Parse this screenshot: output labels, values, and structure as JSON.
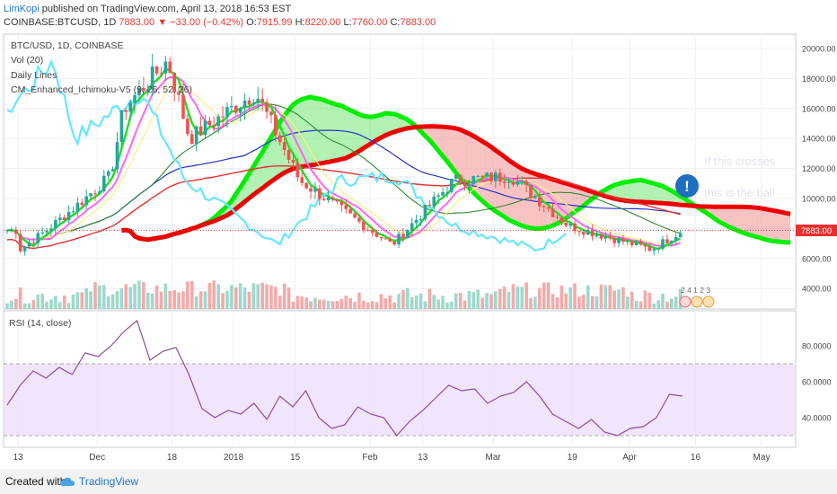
{
  "header": {
    "author": "LimKopi",
    "published_text": " published on TradingView.com, April 13, 2018 16:53 EST",
    "symbol_line": "COINBASE:BTCUSD, 1D",
    "last": "7883.00",
    "change_text": "▼ −33.00 (−0.42%)",
    "o_label": "O:",
    "o_val": "7915.99",
    "h_label": "H:",
    "h_val": "8220.00",
    "l_label": "L:",
    "l_val": "7760.00",
    "c_label": "C:",
    "c_val": "7883.00"
  },
  "legend": {
    "main": "BTC/USD, 1D, COINBASE",
    "vol": "Vol (20)",
    "daily": "Daily Lines",
    "ichimoku": "CM_Enhanced_Ichimoku-V5 (9, 26, 52, 26)"
  },
  "annotations": {
    "ghost1": "If this crosses",
    "ghost2": "this is the ball",
    "marker": "!",
    "price_tag": "7883.00",
    "events": "2 4 1 2 3"
  },
  "rsi": {
    "title": "RSI (14, close)"
  },
  "footer": {
    "created": "Created with",
    "brand": "TradingView"
  },
  "colors": {
    "ema_green": "#22dd22",
    "tenkan": "#ff66ee",
    "kijun_yellow": "#ffee88",
    "chikou": "#66e6ff",
    "ma_blue": "#2233cc",
    "ma_red": "#e83030",
    "ma_dkgreen": "#2e8b2e",
    "cloud_bull": "#00ee00",
    "cloud_bear": "#ee0000",
    "up_candle": "#26a69a",
    "down_candle": "#ef5350",
    "rsi_line": "#8e4b9e",
    "rsi_band": "#ecdcfa",
    "info": "#1e6fc0"
  },
  "chart_data": [
    {
      "type": "candlestick",
      "title": "BTC/USD, 1D, COINBASE",
      "y_ticks": [
        4000,
        6000,
        8000,
        10000,
        12000,
        14000,
        16000,
        18000,
        20000
      ],
      "y_tick_labels": [
        "4000.00",
        "6000.00",
        "8000.00",
        "10000.00",
        "12000.00",
        "14000.00",
        "16000.00",
        "18000.00",
        "20000.00"
      ],
      "ylim": [
        2800,
        20500
      ],
      "x_tick_labels": [
        "13",
        "Dec",
        "18",
        "2018",
        "15",
        "Feb",
        "13",
        "Mar",
        "19",
        "Apr",
        "16",
        "May"
      ],
      "price_approx": [
        {
          "date": "2017-11-13",
          "close": 6500
        },
        {
          "date": "2017-11-20",
          "close": 8000
        },
        {
          "date": "2017-11-27",
          "close": 9700
        },
        {
          "date": "2017-12-04",
          "close": 11500
        },
        {
          "date": "2017-12-07",
          "close": 16000
        },
        {
          "date": "2017-12-17",
          "close": 19200
        },
        {
          "date": "2017-12-22",
          "close": 14000
        },
        {
          "date": "2018-01-06",
          "close": 17100
        },
        {
          "date": "2018-01-16",
          "close": 11200
        },
        {
          "date": "2018-02-06",
          "close": 6900
        },
        {
          "date": "2018-02-20",
          "close": 11200
        },
        {
          "date": "2018-03-05",
          "close": 11500
        },
        {
          "date": "2018-03-18",
          "close": 8200
        },
        {
          "date": "2018-04-06",
          "close": 6600
        },
        {
          "date": "2018-04-13",
          "close": 7883
        }
      ]
    },
    {
      "type": "line",
      "title": "RSI (14, close)",
      "y_ticks": [
        40,
        60,
        80
      ],
      "y_tick_labels": [
        "40.0000",
        "60.0000",
        "80.0000"
      ],
      "bands": [
        30,
        70
      ],
      "series": [
        {
          "name": "RSI (14, close)",
          "values": [
            47,
            58,
            66,
            62,
            68,
            64,
            76,
            74,
            80,
            88,
            94,
            72,
            77,
            79,
            64,
            45,
            40,
            44,
            42,
            48,
            39,
            52,
            46,
            55,
            40,
            34,
            36,
            46,
            42,
            40,
            30,
            38,
            44,
            51,
            58,
            55,
            56,
            48,
            52,
            54,
            60,
            52,
            42,
            38,
            34,
            39,
            32,
            30,
            34,
            35,
            40,
            53,
            52
          ]
        }
      ]
    }
  ]
}
